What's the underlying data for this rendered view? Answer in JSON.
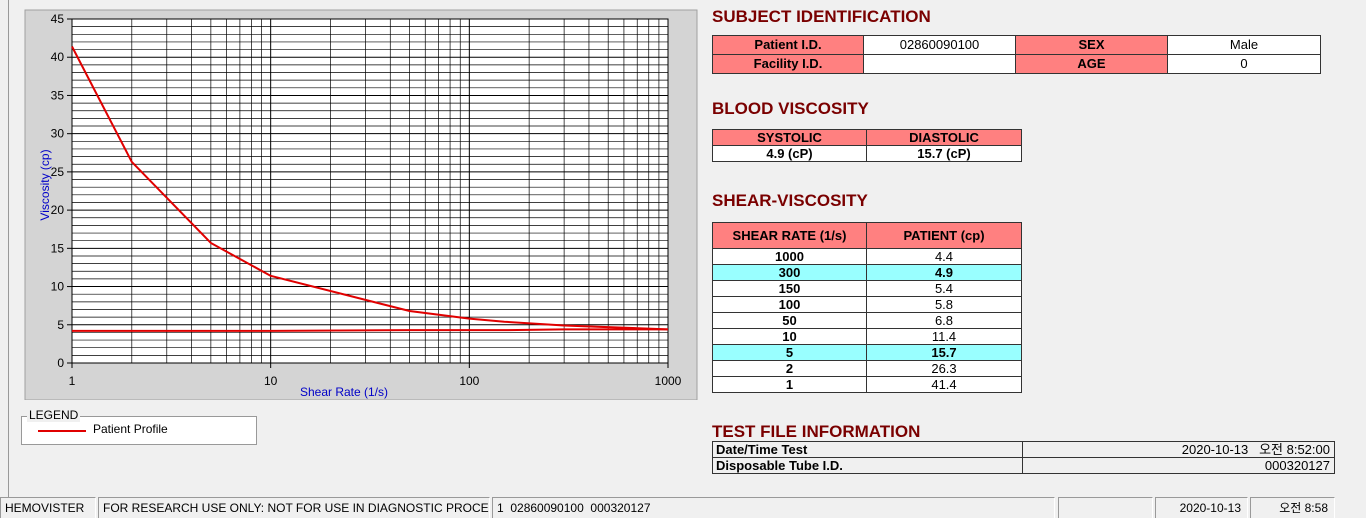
{
  "chart_data": {
    "type": "line",
    "x_label": "Shear Rate (1/s)",
    "y_label": "Viscosity (cp)",
    "x": [
      1,
      2,
      5,
      10,
      50,
      100,
      150,
      300,
      1000
    ],
    "series": [
      {
        "name": "Patient Profile",
        "color": "#e00000",
        "values": [
          41.4,
          26.3,
          15.7,
          11.4,
          6.8,
          5.8,
          5.4,
          4.9,
          4.4
        ]
      },
      {
        "color": "#e00000",
        "values": [
          4.2,
          4.2,
          4.2,
          4.2,
          4.3,
          4.3,
          4.3,
          4.4,
          4.4
        ]
      }
    ],
    "xlim": [
      1,
      1000
    ],
    "ylim": [
      0,
      45
    ],
    "xticks": [
      1,
      10,
      100,
      1000
    ],
    "yticks": [
      0,
      5,
      10,
      15,
      20,
      25,
      30,
      35,
      40,
      45
    ],
    "xscale": "log",
    "grid": true,
    "xminor": [
      2,
      3,
      4,
      5,
      6,
      7,
      8,
      9,
      20,
      30,
      40,
      50,
      60,
      70,
      80,
      90,
      200,
      300,
      400,
      500,
      600,
      700,
      800,
      900
    ],
    "yminor": [
      1,
      2,
      3,
      4,
      6,
      7,
      8,
      9,
      11,
      12,
      13,
      14,
      16,
      17,
      18,
      19,
      21,
      22,
      23,
      24,
      26,
      27,
      28,
      29,
      31,
      32,
      33,
      34,
      36,
      37,
      38,
      39,
      41,
      42,
      43,
      44
    ]
  },
  "legend": {
    "title": "LEGEND"
  },
  "subject": {
    "title": "SUBJECT IDENTIFICATION",
    "rows": [
      [
        "Patient I.D.",
        "02860090100",
        "SEX",
        "Male"
      ],
      [
        "Facility I.D.",
        null,
        "AGE",
        "0"
      ]
    ]
  },
  "blood": {
    "title": "BLOOD VISCOSITY",
    "header": [
      "SYSTOLIC",
      "DIASTOLIC"
    ],
    "row": [
      "4.9 (cP)",
      "15.7 (cP)"
    ]
  },
  "shear": {
    "title": "SHEAR-VISCOSITY",
    "header": [
      "SHEAR RATE (1/s)",
      "PATIENT (cp)"
    ],
    "rows": [
      [
        "1000",
        "4.4"
      ],
      [
        "300",
        "4.9"
      ],
      [
        "150",
        "5.4"
      ],
      [
        "100",
        "5.8"
      ],
      [
        "50",
        "6.8"
      ],
      [
        "10",
        "11.4"
      ],
      [
        "5",
        "15.7"
      ],
      [
        "2",
        "26.3"
      ],
      [
        "1",
        "41.4"
      ]
    ],
    "highlight_rows": [
      1,
      6
    ]
  },
  "test_file": {
    "title": "TEST FILE INFORMATION",
    "rows": [
      [
        "Date/Time Test",
        "2020-10-13   오전 8:52:00"
      ],
      [
        "Disposable Tube I.D.",
        "000320127"
      ]
    ]
  },
  "status_bar": [
    "HEMOVISTER",
    "FOR RESEARCH USE ONLY: NOT FOR USE IN DIAGNOSTIC PROCEDURES",
    "1  02860090100  000320127",
    "2020-10-13",
    "오전 8:58"
  ]
}
